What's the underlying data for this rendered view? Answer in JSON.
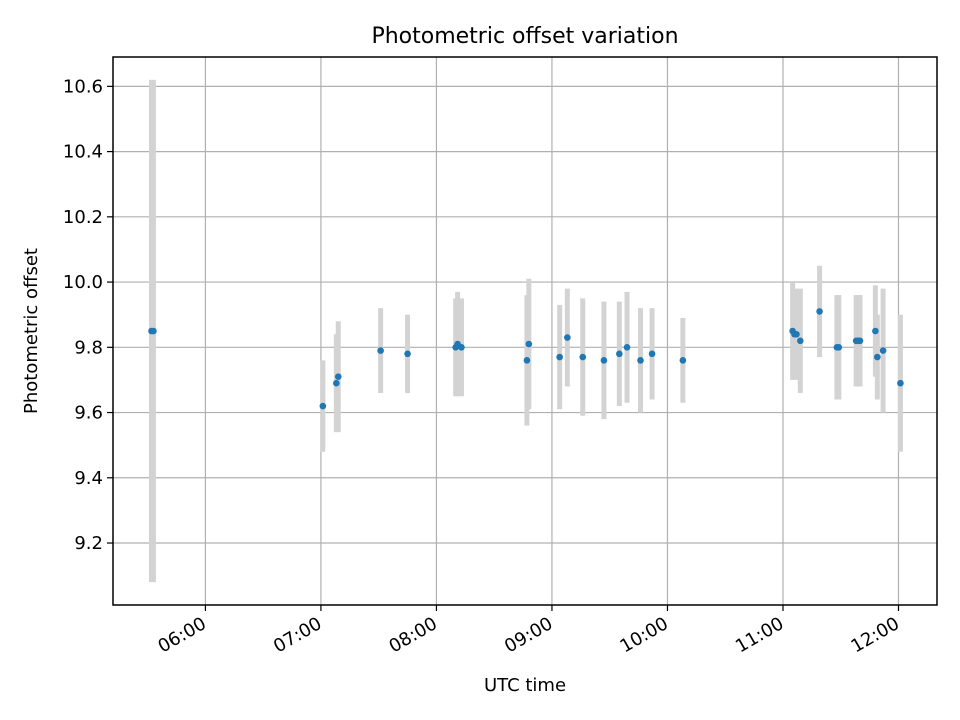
{
  "chart_data": {
    "type": "scatter",
    "title": "Photometric offset variation",
    "xlabel": "UTC time",
    "ylabel": "Photometric offset",
    "x_axis": "time",
    "x_tick_labels": [
      "06:00",
      "07:00",
      "08:00",
      "09:00",
      "10:00",
      "11:00",
      "12:00"
    ],
    "y_ticks": [
      9.2,
      9.4,
      9.6,
      9.8,
      10.0,
      10.2,
      10.4,
      10.6
    ],
    "y_tick_labels": [
      "9.2",
      "9.4",
      "9.6",
      "9.8",
      "10.0",
      "10.2",
      "10.4",
      "10.6"
    ],
    "xlim": [
      "05:12",
      "12:20"
    ],
    "ylim": [
      9.01,
      10.69
    ],
    "grid": true,
    "marker_color": "#1f77b4",
    "errorbar_color": "#d3d3d3",
    "points": [
      {
        "x": "05:32",
        "y": 9.85,
        "yerr": 0.77
      },
      {
        "x": "05:33",
        "y": 9.85,
        "yerr": 0.77
      },
      {
        "x": "07:01",
        "y": 9.62,
        "yerr": 0.14
      },
      {
        "x": "07:08",
        "y": 9.69,
        "yerr": 0.15
      },
      {
        "x": "07:09",
        "y": 9.71,
        "yerr": 0.17
      },
      {
        "x": "07:31",
        "y": 9.79,
        "yerr": 0.13
      },
      {
        "x": "07:45",
        "y": 9.78,
        "yerr": 0.12
      },
      {
        "x": "08:10",
        "y": 9.8,
        "yerr": 0.15
      },
      {
        "x": "08:11",
        "y": 9.81,
        "yerr": 0.16
      },
      {
        "x": "08:13",
        "y": 9.8,
        "yerr": 0.15
      },
      {
        "x": "08:47",
        "y": 9.76,
        "yerr": 0.2
      },
      {
        "x": "08:48",
        "y": 9.81,
        "yerr": 0.2
      },
      {
        "x": "09:04",
        "y": 9.77,
        "yerr": 0.16
      },
      {
        "x": "09:08",
        "y": 9.83,
        "yerr": 0.15
      },
      {
        "x": "09:16",
        "y": 9.77,
        "yerr": 0.18
      },
      {
        "x": "09:27",
        "y": 9.76,
        "yerr": 0.18
      },
      {
        "x": "09:35",
        "y": 9.78,
        "yerr": 0.16
      },
      {
        "x": "09:39",
        "y": 9.8,
        "yerr": 0.17
      },
      {
        "x": "09:46",
        "y": 9.76,
        "yerr": 0.16
      },
      {
        "x": "09:52",
        "y": 9.78,
        "yerr": 0.14
      },
      {
        "x": "10:08",
        "y": 9.76,
        "yerr": 0.13
      },
      {
        "x": "11:05",
        "y": 9.85,
        "yerr": 0.15
      },
      {
        "x": "11:06",
        "y": 9.84,
        "yerr": 0.13
      },
      {
        "x": "11:07",
        "y": 9.84,
        "yerr": 0.14
      },
      {
        "x": "11:09",
        "y": 9.82,
        "yerr": 0.16
      },
      {
        "x": "11:19",
        "y": 9.91,
        "yerr": 0.14
      },
      {
        "x": "11:28",
        "y": 9.8,
        "yerr": 0.16
      },
      {
        "x": "11:29",
        "y": 9.8,
        "yerr": 0.16
      },
      {
        "x": "11:38",
        "y": 9.82,
        "yerr": 0.14
      },
      {
        "x": "11:39",
        "y": 9.82,
        "yerr": 0.14
      },
      {
        "x": "11:40",
        "y": 9.82,
        "yerr": 0.14
      },
      {
        "x": "11:48",
        "y": 9.85,
        "yerr": 0.14
      },
      {
        "x": "11:49",
        "y": 9.77,
        "yerr": 0.13
      },
      {
        "x": "11:52",
        "y": 9.79,
        "yerr": 0.19
      },
      {
        "x": "12:01",
        "y": 9.69,
        "yerr": 0.21
      }
    ]
  }
}
